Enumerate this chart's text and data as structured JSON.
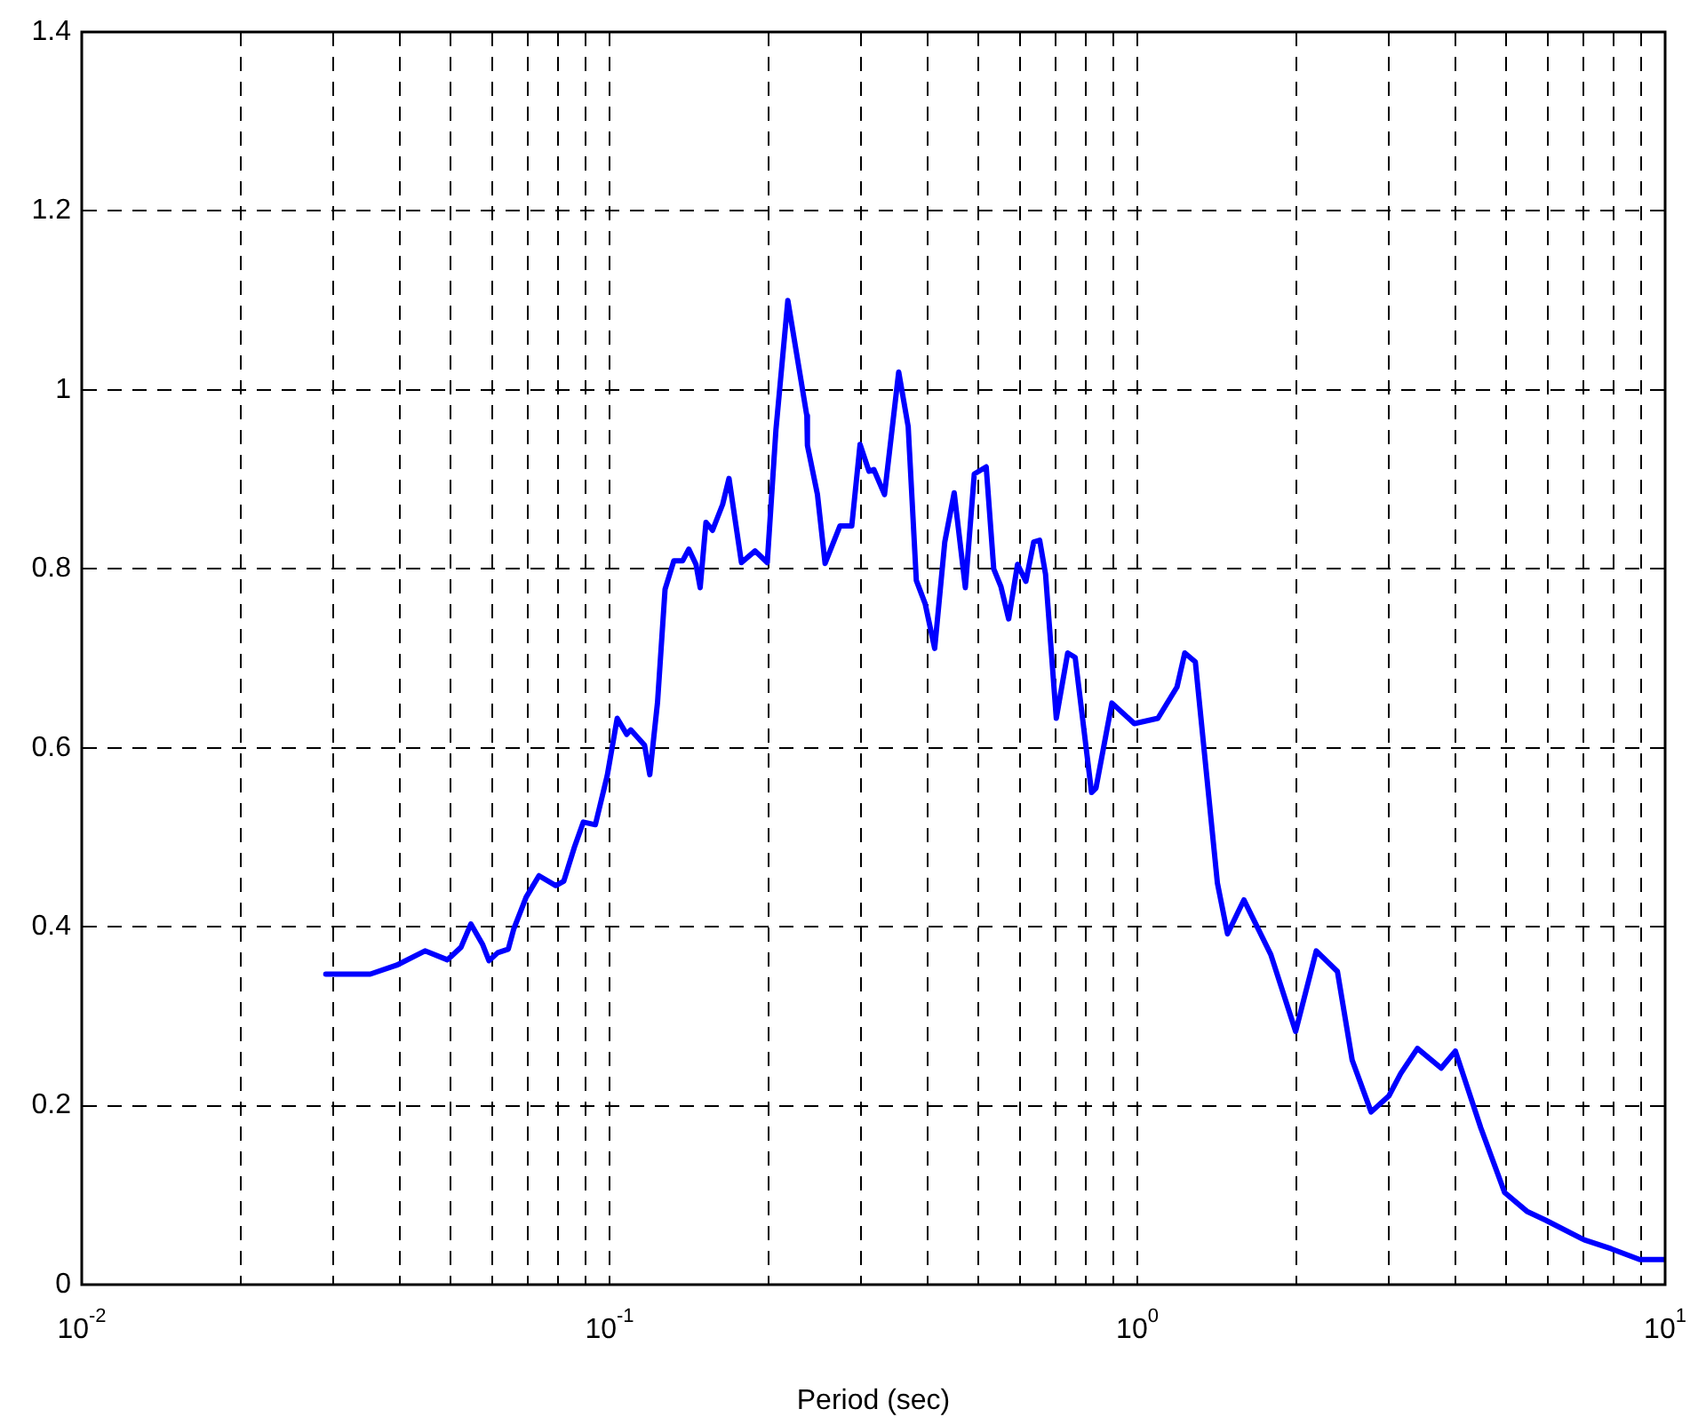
{
  "chart_data": {
    "type": "line",
    "xlabel": "Period (sec)",
    "log": "x",
    "grid": true,
    "marker": "none",
    "line_style": "solid",
    "xlim": [
      0.01,
      10
    ],
    "xticks": [
      {
        "value": 0.01,
        "label": "10$^{-2}$"
      },
      {
        "value": 0.02,
        "label": null
      },
      {
        "value": 0.03,
        "label": null
      },
      {
        "value": 0.04,
        "label": null
      },
      {
        "value": 0.05,
        "label": null
      },
      {
        "value": 0.06,
        "label": null
      },
      {
        "value": 0.07,
        "label": null
      },
      {
        "value": 0.08,
        "label": null
      },
      {
        "value": 0.09,
        "label": null
      },
      {
        "value": 0.1,
        "label": "10$^{-1}$"
      },
      {
        "value": 0.2,
        "label": null
      },
      {
        "value": 0.3,
        "label": null
      },
      {
        "value": 0.4,
        "label": null
      },
      {
        "value": 0.5,
        "label": null
      },
      {
        "value": 0.6,
        "label": null
      },
      {
        "value": 0.7,
        "label": null
      },
      {
        "value": 0.8,
        "label": null
      },
      {
        "value": 0.9,
        "label": null
      },
      {
        "value": 1,
        "label": "10$^{0}$"
      },
      {
        "value": 2,
        "label": null
      },
      {
        "value": 3,
        "label": null
      },
      {
        "value": 4,
        "label": null
      },
      {
        "value": 5,
        "label": null
      },
      {
        "value": 6,
        "label": null
      },
      {
        "value": 7,
        "label": null
      },
      {
        "value": 8,
        "label": null
      },
      {
        "value": 9,
        "label": null
      },
      {
        "value": 10,
        "label": "10$^{1}$"
      }
    ],
    "ylim": [
      0,
      1.4
    ],
    "yticks": [
      0,
      0.2,
      0.4,
      0.6,
      0.8,
      1,
      1.2,
      1.4
    ],
    "series": [
      {
        "color": "#0000ff",
        "x": [
          0.029,
          0.0352,
          0.0395,
          0.0447,
          0.0493,
          0.0523,
          0.0546,
          0.0575,
          0.0591,
          0.0614,
          0.0643,
          0.0658,
          0.0695,
          0.0735,
          0.0791,
          0.0819,
          0.0858,
          0.0892,
          0.094,
          0.099,
          0.1034,
          0.1078,
          0.1097,
          0.1165,
          0.1192,
          0.1233,
          0.1274,
          0.1324,
          0.1376,
          0.1413,
          0.1458,
          0.1485,
          0.1523,
          0.1567,
          0.1638,
          0.1684,
          0.1778,
          0.1887,
          0.199,
          0.2067,
          0.2177,
          0.2365,
          0.2371,
          0.2477,
          0.2561,
          0.2733,
          0.2877,
          0.2983,
          0.3102,
          0.3168,
          0.3319,
          0.3531,
          0.368,
          0.3813,
          0.3963,
          0.4131,
          0.4317,
          0.4498,
          0.4722,
          0.491,
          0.5172,
          0.5345,
          0.5516,
          0.5705,
          0.593,
          0.615,
          0.6363,
          0.653,
          0.67,
          0.7022,
          0.738,
          0.7625,
          0.819,
          0.835,
          0.895,
          0.987,
          1.094,
          1.189,
          1.23,
          1.288,
          1.418,
          1.482,
          1.592,
          1.79,
          1.995,
          2.183,
          2.394,
          2.553,
          2.773,
          2.997,
          3.155,
          3.394,
          3.764,
          4.005,
          4.476,
          4.964,
          5.47,
          5.94,
          7.03,
          7.91,
          8.95,
          10
        ],
        "values": [
          0.347,
          0.347,
          0.357,
          0.373,
          0.363,
          0.377,
          0.403,
          0.38,
          0.362,
          0.371,
          0.375,
          0.397,
          0.433,
          0.457,
          0.446,
          0.451,
          0.489,
          0.517,
          0.514,
          0.569,
          0.633,
          0.615,
          0.62,
          0.603,
          0.57,
          0.651,
          0.777,
          0.809,
          0.809,
          0.822,
          0.805,
          0.779,
          0.852,
          0.843,
          0.872,
          0.901,
          0.807,
          0.82,
          0.807,
          0.956,
          1.1,
          0.971,
          0.938,
          0.883,
          0.806,
          0.848,
          0.848,
          0.939,
          0.909,
          0.911,
          0.883,
          1.02,
          0.959,
          0.787,
          0.761,
          0.711,
          0.83,
          0.885,
          0.779,
          0.906,
          0.914,
          0.8,
          0.78,
          0.744,
          0.805,
          0.786,
          0.83,
          0.832,
          0.794,
          0.633,
          0.706,
          0.701,
          0.55,
          0.555,
          0.65,
          0.627,
          0.633,
          0.668,
          0.706,
          0.696,
          0.449,
          0.392,
          0.43,
          0.369,
          0.283,
          0.373,
          0.35,
          0.251,
          0.193,
          0.211,
          0.236,
          0.264,
          0.242,
          0.261,
          0.175,
          0.103,
          0.082,
          0.072,
          0.05,
          0.04,
          0.028,
          0.028
        ]
      }
    ]
  }
}
